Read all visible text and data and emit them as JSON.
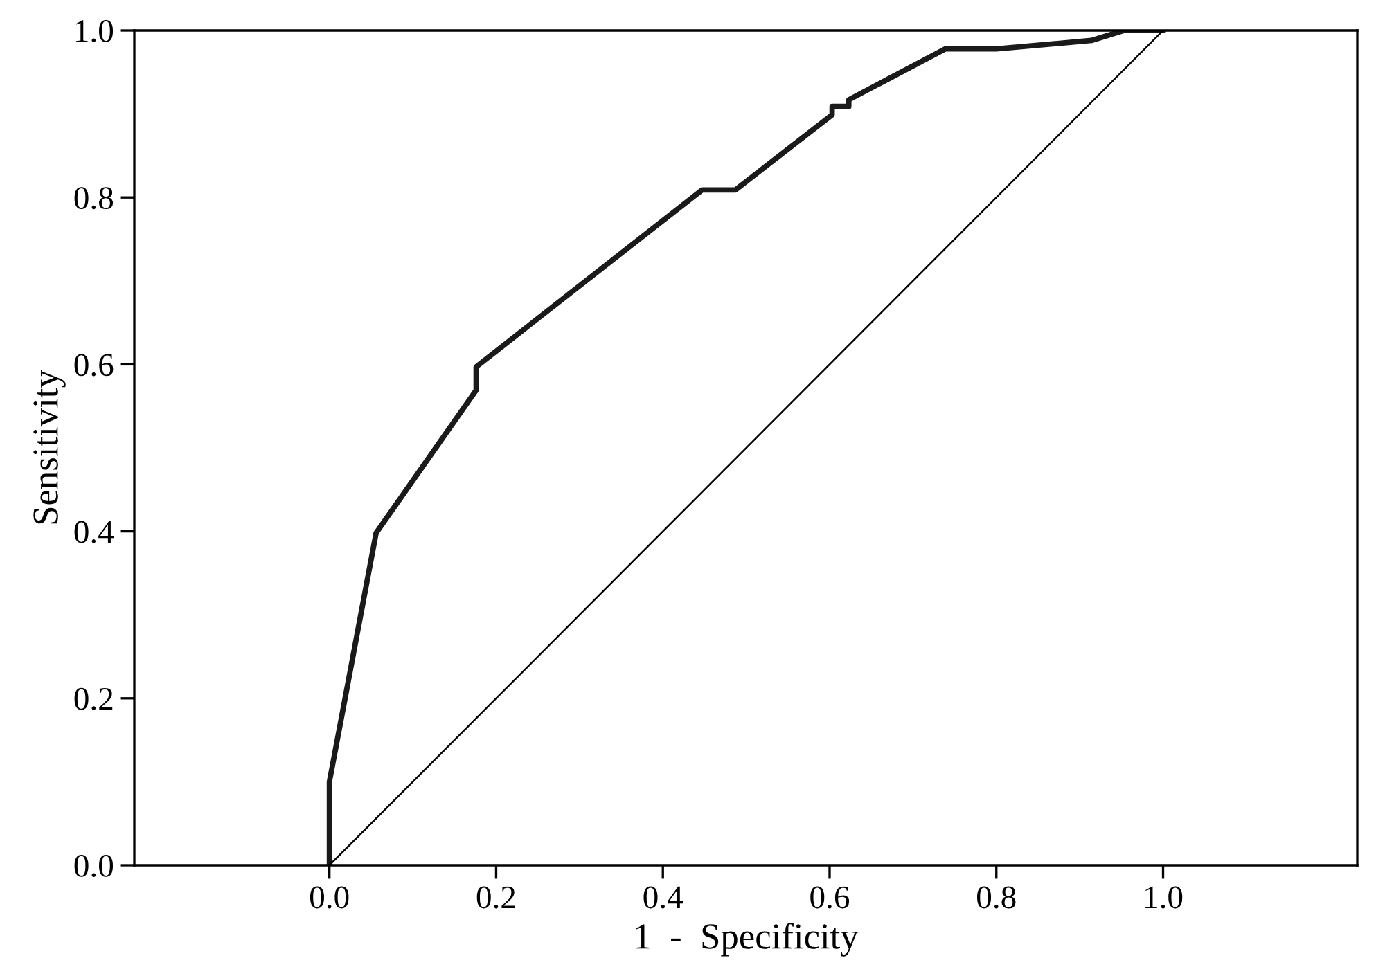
{
  "chart_data": {
    "type": "line",
    "xlabel": "1  -  Specificity",
    "ylabel": "Sensitivity",
    "xlim": [
      -0.234,
      1.233
    ],
    "ylim": [
      0.0,
      1.0
    ],
    "xticks": [
      {
        "value": 0,
        "label": "0.0"
      },
      {
        "value": 0.2,
        "label": "0.2"
      },
      {
        "value": 0.4,
        "label": "0.4"
      },
      {
        "value": 0.6,
        "label": "0.6"
      },
      {
        "value": 0.8,
        "label": "0.8"
      },
      {
        "value": 1,
        "label": "1.0"
      }
    ],
    "yticks": [
      {
        "value": 0,
        "label": "0.0"
      },
      {
        "value": 0.2,
        "label": "0.2"
      },
      {
        "value": 0.4,
        "label": "0.4"
      },
      {
        "value": 0.6,
        "label": "0.6"
      },
      {
        "value": 0.8,
        "label": "0.8"
      },
      {
        "value": 1,
        "label": "1.0"
      }
    ],
    "grid": false,
    "legend": false,
    "marker": "none",
    "line_style": "solid",
    "series": [
      {
        "color": "#1a1a1a",
        "x": [
          0,
          0,
          0.056,
          0.176,
          0.176,
          0.447,
          0.487,
          0.603,
          0.603,
          0.623,
          0.623,
          0.739,
          0.8,
          0.914,
          0.953,
          1.0
        ],
        "values": [
          0,
          0.1,
          0.398,
          0.569,
          0.597,
          0.809,
          0.809,
          0.899,
          0.909,
          0.909,
          0.917,
          0.978,
          0.978,
          0.988,
          1.0,
          1.0
        ]
      },
      {
        "color": "#000000",
        "x": [
          0,
          1
        ],
        "values": [
          0,
          1
        ]
      }
    ]
  }
}
